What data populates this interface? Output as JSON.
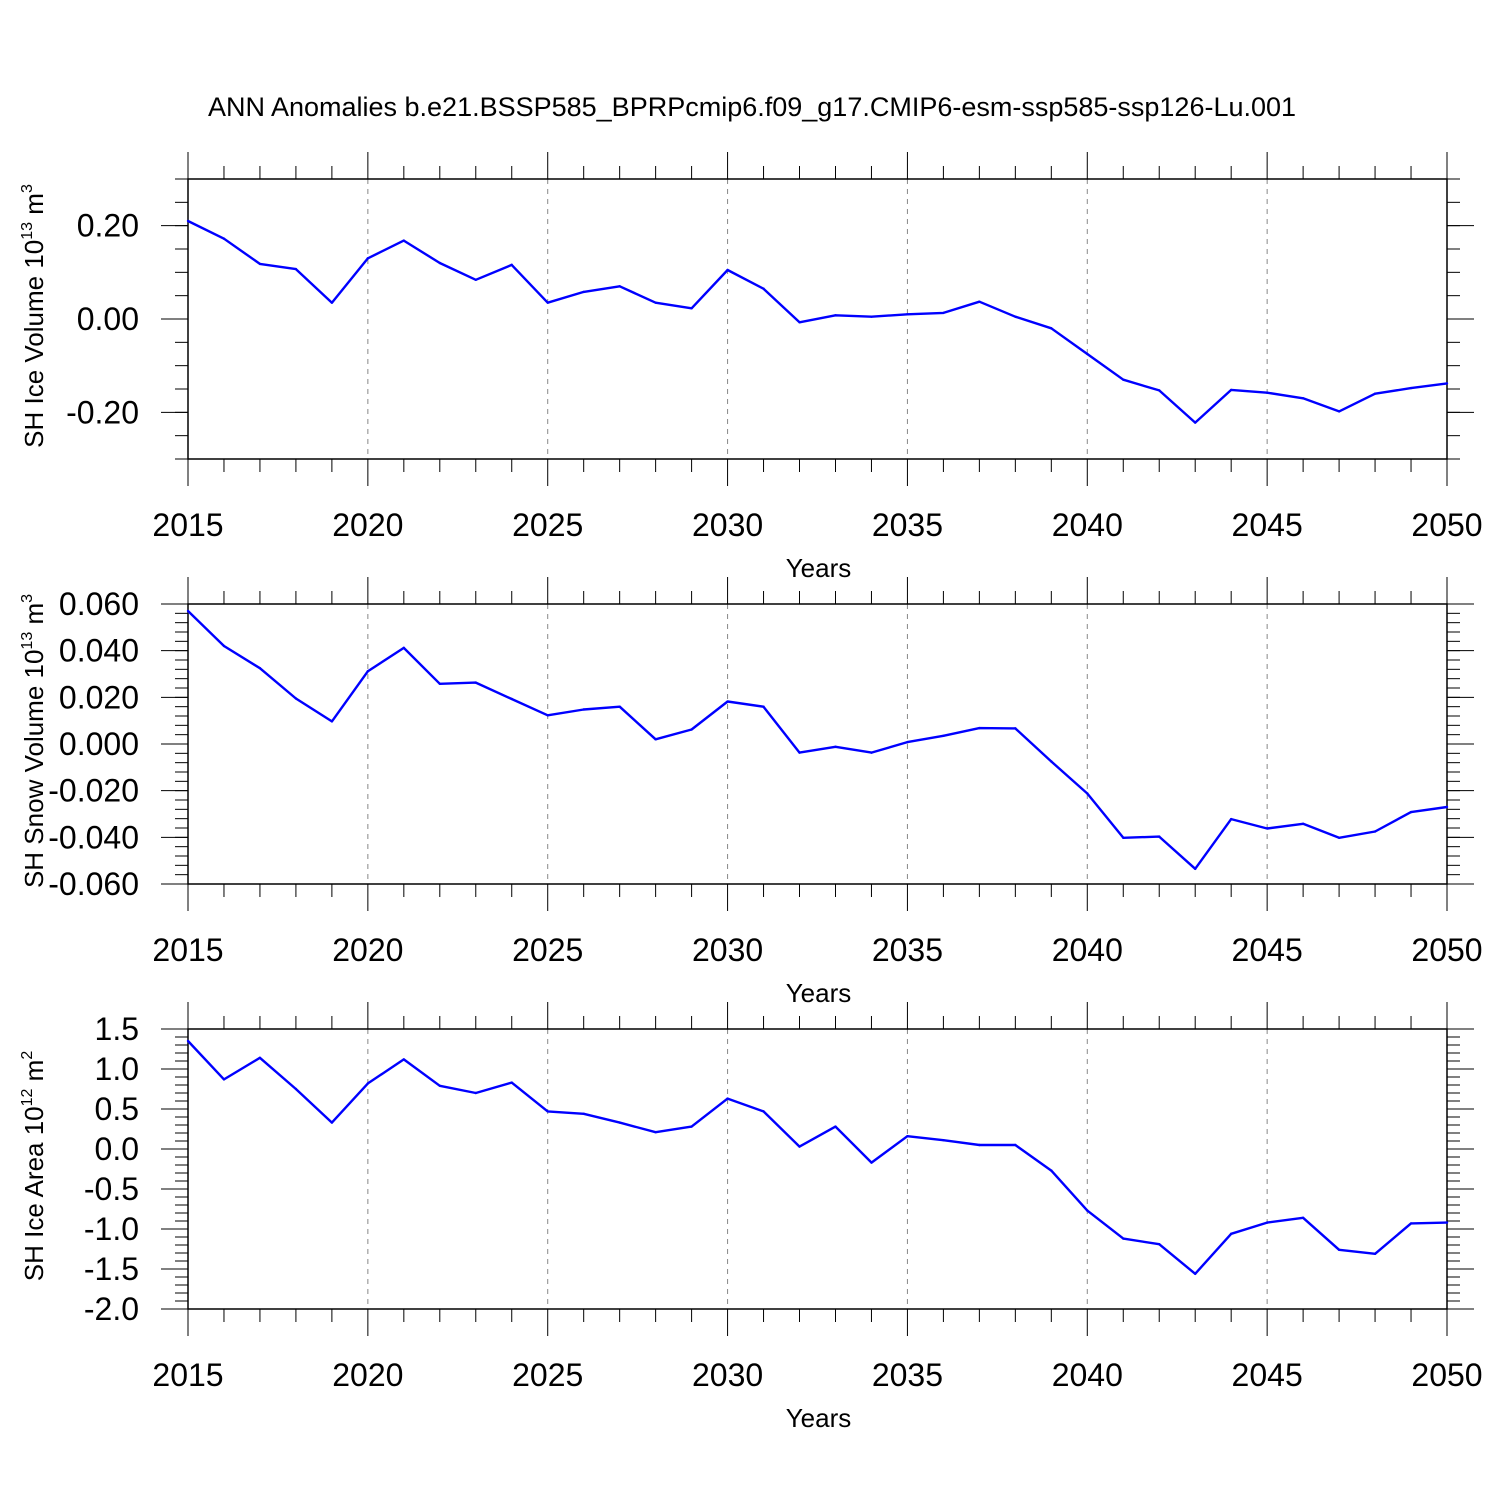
{
  "chart_data": {
    "title": "ANN Anomalies b.e21.BSSP585_BPRPcmip6.f09_g17.CMIP6-esm-ssp585-ssp126-Lu.001",
    "line_color": "#0000ff",
    "x": [
      2015,
      2016,
      2017,
      2018,
      2019,
      2020,
      2021,
      2022,
      2023,
      2024,
      2025,
      2026,
      2027,
      2028,
      2029,
      2030,
      2031,
      2032,
      2033,
      2034,
      2035,
      2036,
      2037,
      2038,
      2039,
      2040,
      2041,
      2042,
      2043,
      2044,
      2045,
      2046,
      2047,
      2048,
      2049,
      2050
    ],
    "panels": [
      {
        "type": "line",
        "ylabel": "SH Ice Volume 10",
        "ylabel_sup": "13",
        "ylabel_unit": "m",
        "ylabel_unit_sup": "3",
        "xlabel": "Years",
        "xlim": [
          2015,
          2050
        ],
        "ylim": [
          -0.3,
          0.3
        ],
        "yticks": [
          -0.2,
          0.0,
          0.2
        ],
        "ytick_labels": [
          "-0.20",
          "0.00",
          "0.20"
        ],
        "yminor": 0.05,
        "xticks": [
          2015,
          2020,
          2025,
          2030,
          2035,
          2040,
          2045,
          2050
        ],
        "xtick_labels": [
          "2015",
          "2020",
          "2025",
          "2030",
          "2035",
          "2040",
          "2045",
          "2050"
        ],
        "gridlines": "dashed vertical at major x ticks",
        "values": [
          0.21,
          0.172,
          0.118,
          0.107,
          0.035,
          0.13,
          0.168,
          0.12,
          0.084,
          0.116,
          0.035,
          0.058,
          0.07,
          0.035,
          0.023,
          0.105,
          0.065,
          -0.007,
          0.008,
          0.005,
          0.01,
          0.013,
          0.037,
          0.005,
          -0.02,
          -0.075,
          -0.13,
          -0.153,
          -0.222,
          -0.152,
          -0.158,
          -0.17,
          -0.198,
          -0.16,
          -0.148,
          -0.138
        ]
      },
      {
        "type": "line",
        "ylabel": "SH Snow Volume 10",
        "ylabel_sup": "13",
        "ylabel_unit": "m",
        "ylabel_unit_sup": "3",
        "xlabel": "Years",
        "xlim": [
          2015,
          2050
        ],
        "ylim": [
          -0.06,
          0.06
        ],
        "yticks": [
          -0.06,
          -0.04,
          -0.02,
          0.0,
          0.02,
          0.04,
          0.06
        ],
        "ytick_labels": [
          "-0.060",
          "-0.040",
          "-0.020",
          "0.000",
          "0.020",
          "0.040",
          "0.060"
        ],
        "yminor": 0.004,
        "xticks": [
          2015,
          2020,
          2025,
          2030,
          2035,
          2040,
          2045,
          2050
        ],
        "xtick_labels": [
          "2015",
          "2020",
          "2025",
          "2030",
          "2035",
          "2040",
          "2045",
          "2050"
        ],
        "gridlines": "dashed vertical at major x ticks",
        "values": [
          0.057,
          0.042,
          0.0325,
          0.0195,
          0.0097,
          0.0312,
          0.0412,
          0.0258,
          0.0263,
          0.0193,
          0.0123,
          0.0148,
          0.016,
          0.002,
          0.0062,
          0.0182,
          0.016,
          -0.0037,
          -0.0012,
          -0.0037,
          0.0008,
          0.0035,
          0.0068,
          0.0067,
          -0.0075,
          -0.0212,
          -0.0402,
          -0.0397,
          -0.0535,
          -0.0322,
          -0.0362,
          -0.0342,
          -0.0402,
          -0.0375,
          -0.0292,
          -0.027
        ]
      },
      {
        "type": "line",
        "ylabel": "SH Ice Area 10",
        "ylabel_sup": "12",
        "ylabel_unit": "m",
        "ylabel_unit_sup": "2",
        "xlabel": "Years",
        "xlim": [
          2015,
          2050
        ],
        "ylim": [
          -2.0,
          1.5
        ],
        "yticks": [
          -2.0,
          -1.5,
          -1.0,
          -0.5,
          0.0,
          0.5,
          1.0,
          1.5
        ],
        "ytick_labels": [
          "-2.0",
          "-1.5",
          "-1.0",
          "-0.5",
          "0.0",
          "0.5",
          "1.0",
          "1.5"
        ],
        "yminor": 0.1,
        "xticks": [
          2015,
          2020,
          2025,
          2030,
          2035,
          2040,
          2045,
          2050
        ],
        "xtick_labels": [
          "2015",
          "2020",
          "2025",
          "2030",
          "2035",
          "2040",
          "2045",
          "2050"
        ],
        "gridlines": "dashed vertical at major x ticks",
        "values": [
          1.35,
          0.87,
          1.14,
          0.75,
          0.33,
          0.82,
          1.12,
          0.79,
          0.7,
          0.83,
          0.47,
          0.44,
          0.33,
          0.21,
          0.28,
          0.63,
          0.47,
          0.03,
          0.28,
          -0.17,
          0.16,
          0.11,
          0.05,
          0.05,
          -0.27,
          -0.77,
          -1.12,
          -1.19,
          -1.56,
          -1.06,
          -0.92,
          -0.86,
          -1.26,
          -1.31,
          -0.93,
          -0.92
        ]
      }
    ]
  }
}
